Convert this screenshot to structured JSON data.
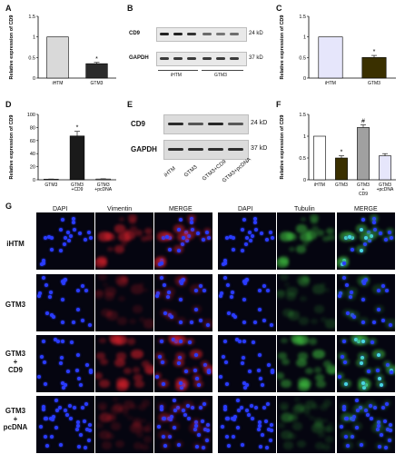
{
  "panels": {
    "A": {
      "label": "A"
    },
    "B": {
      "label": "B"
    },
    "C": {
      "label": "C"
    },
    "D": {
      "label": "D"
    },
    "E": {
      "label": "E"
    },
    "F": {
      "label": "F"
    },
    "G": {
      "label": "G"
    }
  },
  "chart_data": [
    {
      "panel": "A",
      "type": "bar",
      "categories": [
        "iHTM",
        "GTM3"
      ],
      "values": [
        1.0,
        0.35
      ],
      "errors": [
        0.0,
        0.03
      ],
      "ylabel": "Relative expression of CD9",
      "ylim": [
        0,
        1.5
      ],
      "yticks": [
        "0",
        "0.5",
        "1",
        "1.5"
      ],
      "sig": [
        "",
        "*"
      ],
      "colors": [
        "#d9d9d9",
        "#2b2b2b"
      ]
    },
    {
      "panel": "C",
      "type": "bar",
      "categories": [
        "iHTM",
        "GTM3"
      ],
      "values": [
        1.0,
        0.5
      ],
      "errors": [
        0.0,
        0.05
      ],
      "ylabel": "Relative expression of CD9",
      "ylim": [
        0,
        1.5
      ],
      "yticks": [
        "0",
        "0.5",
        "1",
        "1.5"
      ],
      "sig": [
        "",
        "*"
      ],
      "colors": [
        "#e6e6fb",
        "#3a3000"
      ]
    },
    {
      "panel": "D",
      "type": "bar",
      "categories": [
        "GTM3",
        "GTM3\n+CD9",
        "GTM3\n+pcDNA"
      ],
      "values": [
        1.0,
        67.0,
        1.2
      ],
      "errors": [
        0.2,
        7.0,
        0.3
      ],
      "ylabel": "Relative expression of CD9",
      "ylim": [
        0,
        100
      ],
      "yticks": [
        "0",
        "20",
        "40",
        "60",
        "80",
        "100"
      ],
      "sig": [
        "",
        "*",
        ""
      ],
      "colors": [
        "#ffffff",
        "#1a1a1a",
        "#ffffff"
      ]
    },
    {
      "panel": "F",
      "type": "bar",
      "categories": [
        "iHTM",
        "GTM3",
        "GTM3\n+\nCD9",
        "GTM3\n+pcDNA"
      ],
      "values": [
        1.0,
        0.5,
        1.2,
        0.55
      ],
      "errors": [
        0.0,
        0.05,
        0.06,
        0.05
      ],
      "ylabel": "Relative expression of CD9",
      "ylim": [
        0,
        1.5
      ],
      "yticks": [
        "0",
        "0.5",
        "1",
        "1.5"
      ],
      "sig": [
        "",
        "*",
        "#",
        ""
      ],
      "colors": [
        "#ffffff",
        "#3a3000",
        "#a0a0a0",
        "#e6e6fb"
      ]
    }
  ],
  "blots": {
    "B": {
      "rows": [
        {
          "name": "CD9",
          "kd": "24 kD"
        },
        {
          "name": "GAPDH",
          "kd": "37 kD"
        }
      ],
      "groups": [
        "iHTM",
        "GTM3"
      ]
    },
    "E": {
      "rows": [
        {
          "name": "CD9",
          "kd": "24 kD"
        },
        {
          "name": "GAPDH",
          "kd": "37 kD"
        }
      ],
      "lanes": [
        "iHTM",
        "GTM3",
        "GTM3+CD9",
        "GTM3+pcDNA"
      ]
    }
  },
  "microscopy": {
    "left_headers": [
      "DAPI",
      "Vimentin",
      "MERGE"
    ],
    "right_headers": [
      "DAPI",
      "Tubulin",
      "MERGE"
    ],
    "rows": [
      {
        "line1": "iHTM",
        "line2": "",
        "line3": ""
      },
      {
        "line1": "GTM3",
        "line2": "",
        "line3": ""
      },
      {
        "line1": "GTM3",
        "line2": "+",
        "line3": "CD9"
      },
      {
        "line1": "GTM3",
        "line2": "+",
        "line3": "pcDNA"
      }
    ],
    "colors": {
      "dapi": "#2a3cff",
      "vimentin": "#d8202a",
      "tubulin": "#3fbf3f",
      "merge_cyan": "#48d8e0"
    }
  }
}
